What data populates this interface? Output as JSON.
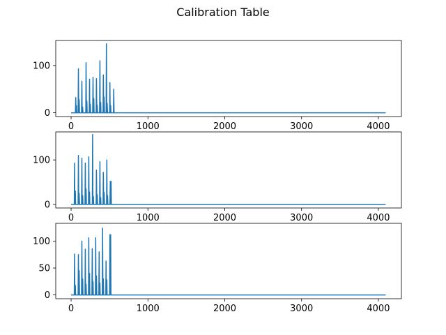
{
  "chart_data": {
    "title": "Calibration Table",
    "line_color": "#1f77b4",
    "panels": [
      {
        "type": "line",
        "xlim": [
          -200,
          4300
        ],
        "ylim": [
          -8,
          153
        ],
        "xticks": [
          0,
          1000,
          2000,
          3000,
          4000
        ],
        "yticks": [
          0,
          100
        ],
        "peaks": [
          {
            "x": 60,
            "y": 32
          },
          {
            "x": 70,
            "y": 15
          },
          {
            "x": 95,
            "y": 93
          },
          {
            "x": 105,
            "y": 28
          },
          {
            "x": 140,
            "y": 67
          },
          {
            "x": 150,
            "y": 12
          },
          {
            "x": 195,
            "y": 106
          },
          {
            "x": 205,
            "y": 25
          },
          {
            "x": 240,
            "y": 71
          },
          {
            "x": 250,
            "y": 18
          },
          {
            "x": 285,
            "y": 75
          },
          {
            "x": 295,
            "y": 30
          },
          {
            "x": 330,
            "y": 72
          },
          {
            "x": 340,
            "y": 16
          },
          {
            "x": 375,
            "y": 110
          },
          {
            "x": 385,
            "y": 22
          },
          {
            "x": 420,
            "y": 80
          },
          {
            "x": 430,
            "y": 33
          },
          {
            "x": 460,
            "y": 146
          },
          {
            "x": 470,
            "y": 20
          },
          {
            "x": 505,
            "y": 64
          },
          {
            "x": 515,
            "y": 15
          },
          {
            "x": 555,
            "y": 50
          }
        ],
        "x_end": 4095
      },
      {
        "type": "line",
        "xlim": [
          -200,
          4300
        ],
        "ylim": [
          -8,
          163
        ],
        "xticks": [
          0,
          1000,
          2000,
          3000,
          4000
        ],
        "yticks": [
          0,
          100
        ],
        "peaks": [
          {
            "x": 45,
            "y": 93
          },
          {
            "x": 55,
            "y": 30
          },
          {
            "x": 95,
            "y": 110
          },
          {
            "x": 105,
            "y": 25
          },
          {
            "x": 140,
            "y": 104
          },
          {
            "x": 150,
            "y": 20
          },
          {
            "x": 185,
            "y": 93
          },
          {
            "x": 195,
            "y": 35
          },
          {
            "x": 230,
            "y": 107
          },
          {
            "x": 240,
            "y": 28
          },
          {
            "x": 280,
            "y": 157
          },
          {
            "x": 290,
            "y": 18
          },
          {
            "x": 330,
            "y": 77
          },
          {
            "x": 340,
            "y": 22
          },
          {
            "x": 375,
            "y": 96
          },
          {
            "x": 385,
            "y": 15
          },
          {
            "x": 420,
            "y": 72
          },
          {
            "x": 430,
            "y": 27
          },
          {
            "x": 465,
            "y": 100
          },
          {
            "x": 475,
            "y": 20
          },
          {
            "x": 510,
            "y": 52
          },
          {
            "x": 520,
            "y": 52
          }
        ],
        "x_end": 4095
      },
      {
        "type": "line",
        "xlim": [
          -200,
          4300
        ],
        "ylim": [
          -7,
          133
        ],
        "xticks": [
          0,
          1000,
          2000,
          3000,
          4000
        ],
        "yticks": [
          0,
          50,
          100
        ],
        "peaks": [
          {
            "x": 45,
            "y": 76
          },
          {
            "x": 55,
            "y": 18
          },
          {
            "x": 95,
            "y": 75
          },
          {
            "x": 105,
            "y": 45
          },
          {
            "x": 140,
            "y": 100
          },
          {
            "x": 150,
            "y": 30
          },
          {
            "x": 185,
            "y": 85
          },
          {
            "x": 195,
            "y": 20
          },
          {
            "x": 230,
            "y": 106
          },
          {
            "x": 240,
            "y": 40
          },
          {
            "x": 275,
            "y": 86
          },
          {
            "x": 285,
            "y": 25
          },
          {
            "x": 320,
            "y": 106
          },
          {
            "x": 330,
            "y": 35
          },
          {
            "x": 365,
            "y": 80
          },
          {
            "x": 375,
            "y": 22
          },
          {
            "x": 410,
            "y": 124
          },
          {
            "x": 420,
            "y": 30
          },
          {
            "x": 455,
            "y": 63
          },
          {
            "x": 465,
            "y": 28
          },
          {
            "x": 505,
            "y": 112
          },
          {
            "x": 515,
            "y": 112
          }
        ],
        "x_end": 4095
      }
    ]
  }
}
